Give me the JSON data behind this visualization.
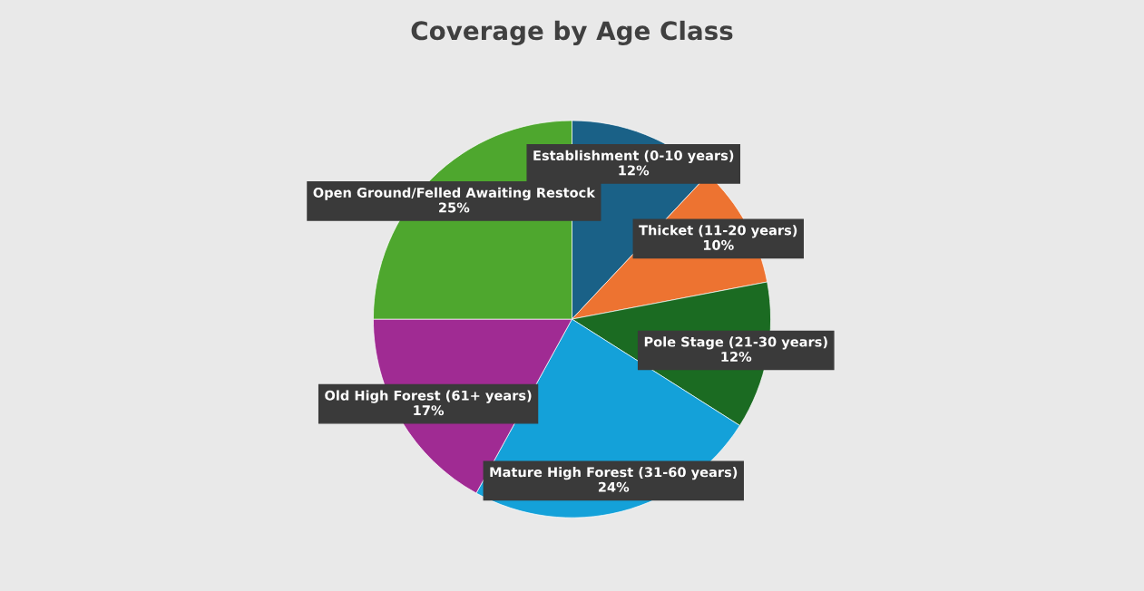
{
  "chart_data": {
    "type": "pie",
    "title": "Coverage by Age Class",
    "categories": [
      "Establishment (0-10 years)",
      "Thicket (11-20 years)",
      "Pole Stage (21-30 years)",
      "Mature High Forest (31-60 years)",
      "Old High Forest (61+ years)",
      "Open Ground/Felled Awaiting Restock"
    ],
    "values": [
      12,
      10,
      12,
      24,
      17,
      25
    ],
    "colors": [
      "#1a6187",
      "#ed7331",
      "#1b6b22",
      "#14a1d9",
      "#a02b93",
      "#4ea72e"
    ],
    "value_labels": [
      "12%",
      "10%",
      "12%",
      "24%",
      "17%",
      "25%"
    ],
    "legend": false
  }
}
